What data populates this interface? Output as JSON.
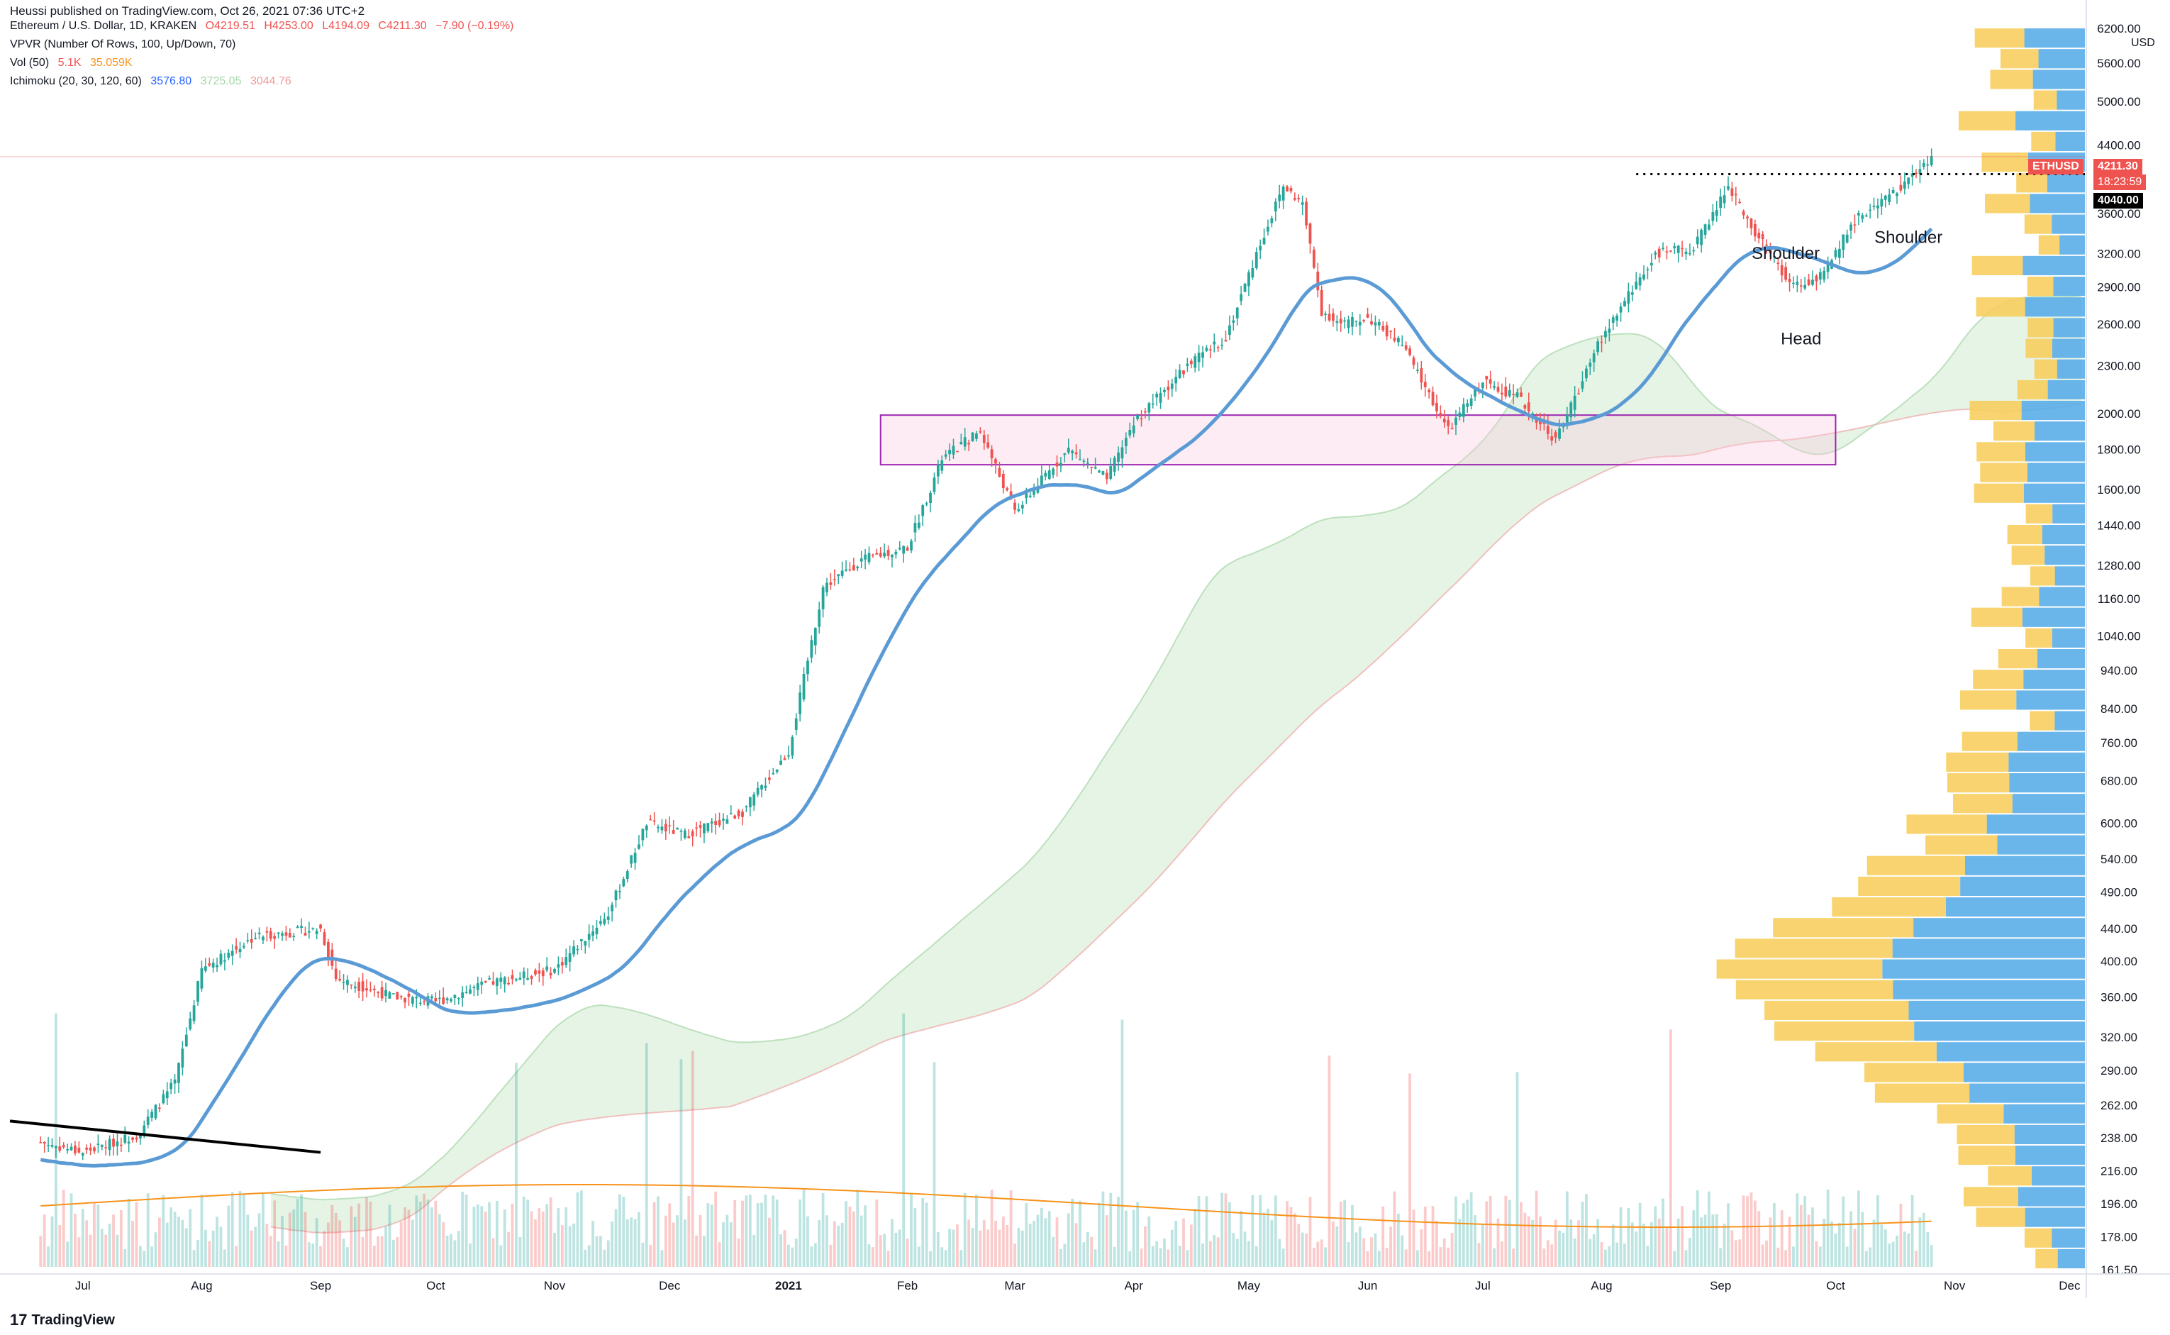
{
  "publisher": "Heussi published on TradingView.com, Oct 26, 2021 07:36 UTC+2",
  "legend": {
    "symbol_line": "Ethereum / U.S. Dollar, 1D, KRAKEN",
    "open": "O4219.51",
    "high": "H4253.00",
    "low": "L4194.09",
    "close": "C4211.30",
    "change": "−7.90 (−0.19%)",
    "vpvr": "VPVR (Number Of Rows, 100, Up/Down, 70)",
    "vol_label": "Vol (50)",
    "vol_value": "5.1K",
    "vol_ma": "35.059K",
    "ichimoku_label": "Ichimoku (20, 30, 120, 60)",
    "ichimoku_v1": "3576.80",
    "ichimoku_v2": "3725.05",
    "ichimoku_v3": "3044.76"
  },
  "ticker_tag": "ETHUSD",
  "last_price": "4211.30",
  "countdown": "18:23:59",
  "level_tag": "4040.00",
  "currency": "USD",
  "brand": "TradingView",
  "colors": {
    "up": "#26a69a",
    "down": "#ef5350",
    "kijun": "#5b9bd5",
    "cloud_green": "#a5d6a7",
    "cloud_red": "#ef9a9a",
    "vpvr_up": "#5aade8",
    "vpvr_down": "#f7ce5f",
    "zone": "#f8c8dc",
    "zone_border": "#9c27b0",
    "vol_ma": "#f7931a"
  },
  "chart_data": {
    "type": "candlestick",
    "scale": "log",
    "y_ticks": [
      6200,
      5600,
      5000,
      4400,
      3600,
      3200,
      2900,
      2600,
      2300,
      2000,
      1800,
      1600,
      1440,
      1280,
      1160,
      1040,
      940,
      840,
      760,
      680,
      600,
      540,
      490,
      440,
      400,
      360,
      320,
      290,
      262,
      238,
      216,
      196,
      178,
      161.5
    ],
    "y_tick_labels": [
      "6200.00",
      "5600.00",
      "5000.00",
      "4400.00",
      "3600.00",
      "3200.00",
      "2900.00",
      "2600.00",
      "2300.00",
      "2000.00",
      "1800.00",
      "1600.00",
      "1440.00",
      "1280.00",
      "1160.00",
      "1040.00",
      "940.00",
      "840.00",
      "760.00",
      "680.00",
      "600.00",
      "540.00",
      "490.00",
      "440.00",
      "400.00",
      "360.00",
      "320.00",
      "290.00",
      "262.00",
      "238.00",
      "216.00",
      "196.00",
      "178.00",
      "161.50"
    ],
    "x_labels": [
      "Jul",
      "Aug",
      "Sep",
      "Oct",
      "Nov",
      "Dec",
      "2021",
      "Feb",
      "Mar",
      "Apr",
      "May",
      "Jun",
      "Jul",
      "Aug",
      "Sep",
      "Oct",
      "Nov",
      "Dec"
    ],
    "price_path_months": [
      "2020-06-20",
      "2020-07-01",
      "2020-07-15",
      "2020-07-25",
      "2020-08-01",
      "2020-08-15",
      "2020-09-01",
      "2020-09-05",
      "2020-09-20",
      "2020-10-01",
      "2020-10-15",
      "2020-11-01",
      "2020-11-15",
      "2020-11-25",
      "2020-12-05",
      "2020-12-20",
      "2021-01-01",
      "2021-01-10",
      "2021-01-20",
      "2021-02-01",
      "2021-02-10",
      "2021-02-20",
      "2021-03-01",
      "2021-03-15",
      "2021-03-25",
      "2021-04-01",
      "2021-04-15",
      "2021-04-25",
      "2021-05-03",
      "2021-05-10",
      "2021-05-15",
      "2021-05-20",
      "2021-05-25",
      "2021-06-01",
      "2021-06-10",
      "2021-06-22",
      "2021-07-01",
      "2021-07-10",
      "2021-07-20",
      "2021-08-01",
      "2021-08-15",
      "2021-08-25",
      "2021-09-03",
      "2021-09-10",
      "2021-09-20",
      "2021-09-28",
      "2021-10-05",
      "2021-10-15",
      "2021-10-26"
    ],
    "price_path_close": [
      235,
      228,
      240,
      280,
      390,
      430,
      440,
      380,
      360,
      355,
      375,
      390,
      460,
      600,
      580,
      620,
      740,
      1200,
      1300,
      1350,
      1750,
      1900,
      1500,
      1800,
      1650,
      1950,
      2300,
      2500,
      3200,
      3900,
      3700,
      2700,
      2600,
      2650,
      2450,
      1900,
      2200,
      2100,
      1850,
      2500,
      3200,
      3250,
      3900,
      3400,
      2900,
      3000,
      3500,
      3800,
      4211.3
    ],
    "zone": {
      "low": 1720,
      "high": 1990,
      "from": "2021-01-25",
      "to": "2021-10-01"
    },
    "neckline": 4040,
    "annotations": [
      "Shoulder",
      "Head",
      "Shoulder"
    ]
  }
}
